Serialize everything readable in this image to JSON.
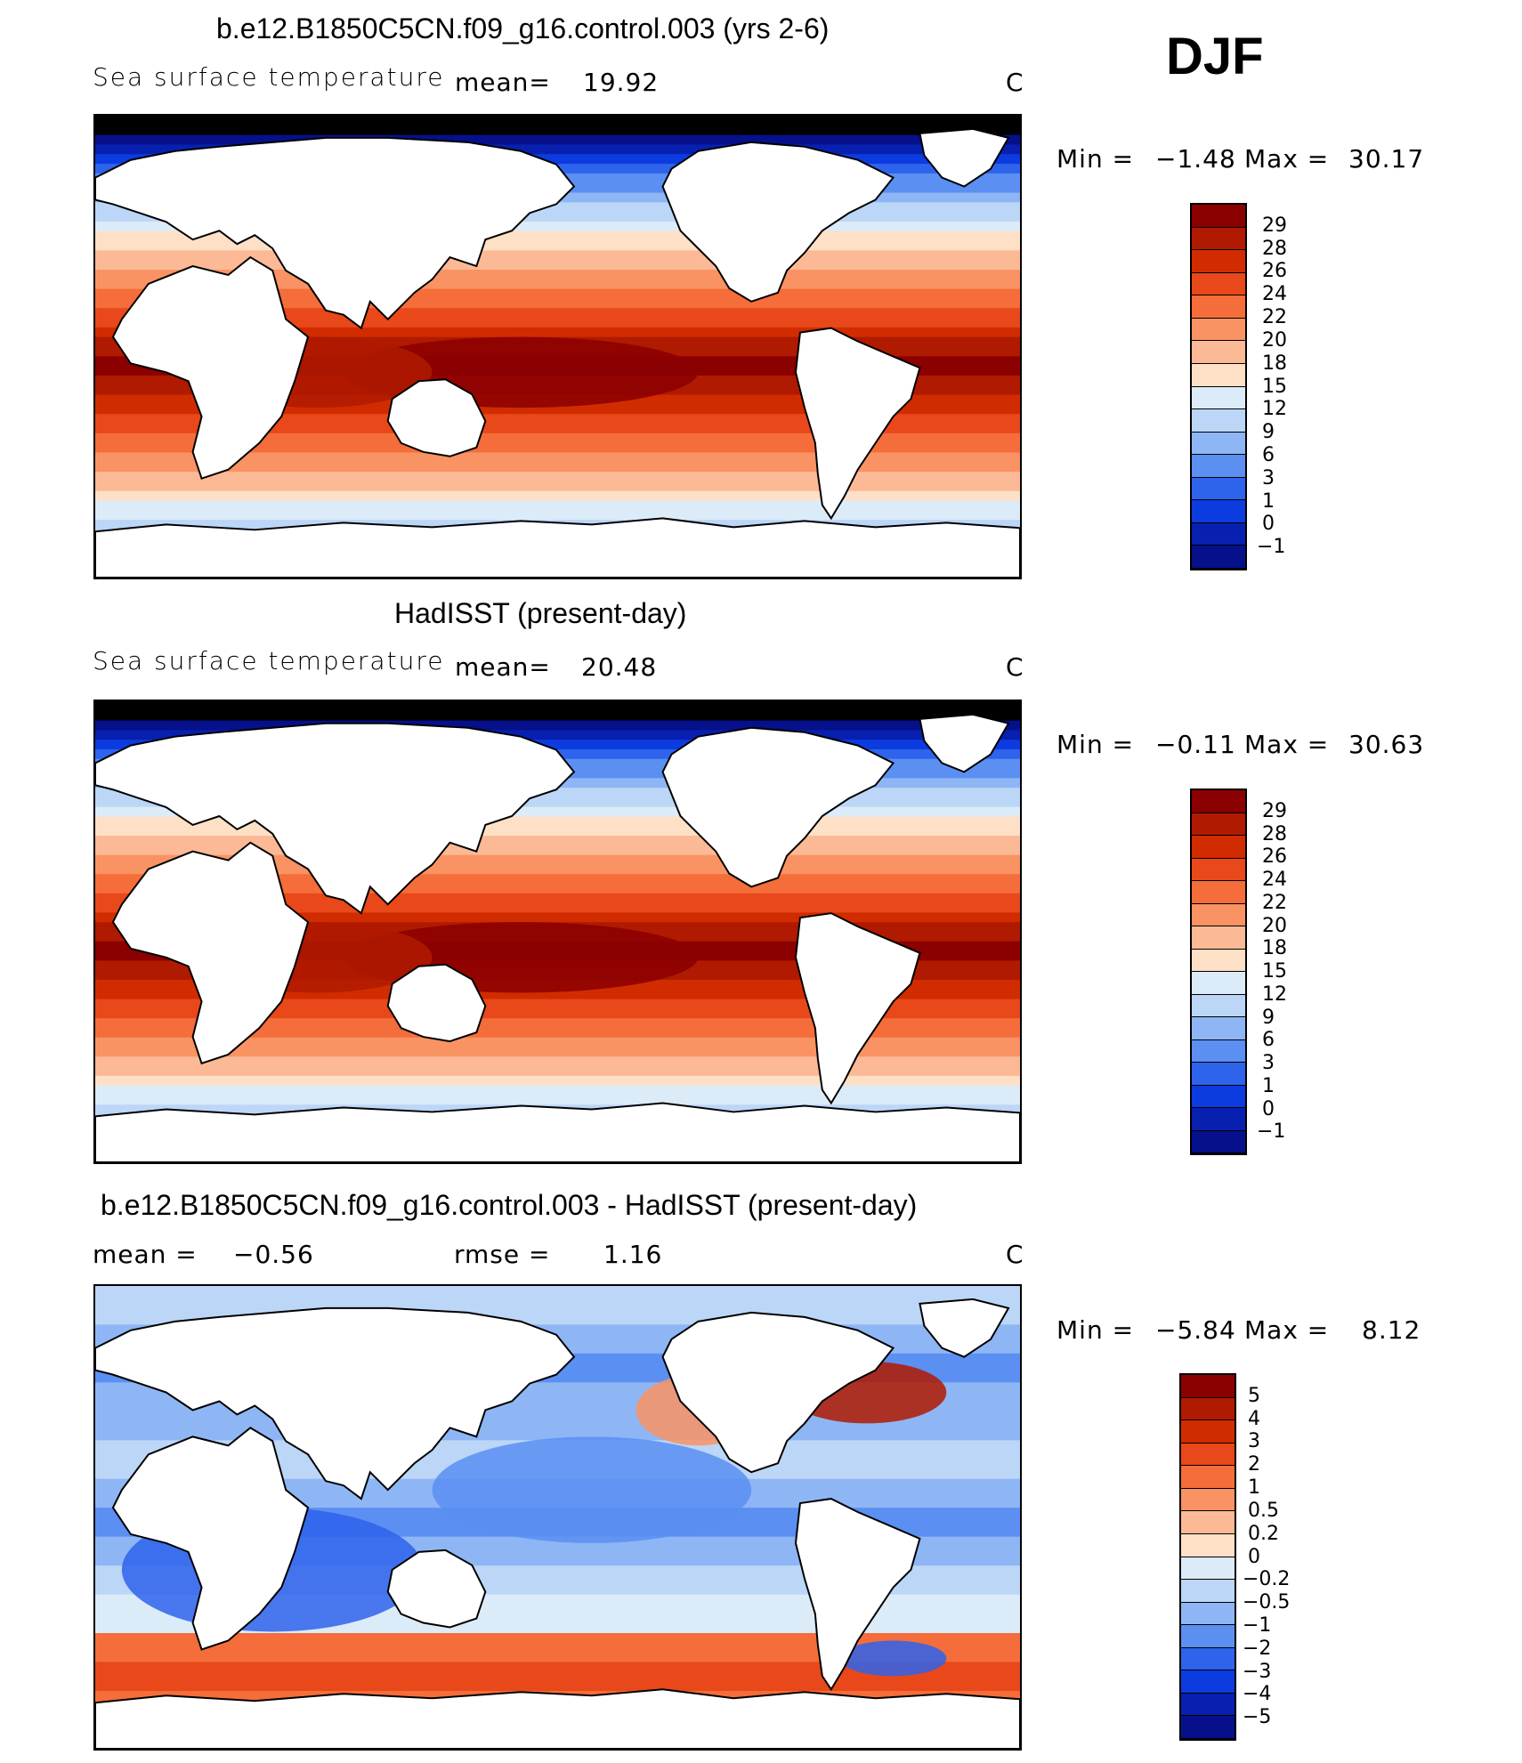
{
  "season": "DJF",
  "panels": [
    {
      "title": "b.e12.B1850C5CN.f09_g16.control.003 (yrs 2-6)",
      "left_label": "Sea surface temperature",
      "stat1_label": "mean=",
      "stat1_value": "19.92",
      "stat2_label": "",
      "stat2_value": "",
      "units": "C",
      "min_label": "Min =",
      "min_value": "−1.48",
      "max_label": "Max =",
      "max_value": "30.17",
      "colorbar": {
        "labels": [
          "29",
          "28",
          "26",
          "24",
          "22",
          "20",
          "18",
          "15",
          "12",
          "9",
          "6",
          "3",
          "1",
          "0",
          "−1"
        ],
        "colors": [
          "#8b0000",
          "#b01a00",
          "#d12c00",
          "#e8481a",
          "#f46d3a",
          "#f99363",
          "#fcb995",
          "#fde0c6",
          "#dcebf8",
          "#bcd6f7",
          "#8eb6f5",
          "#5b8ff2",
          "#2e63ec",
          "#0c3be0",
          "#0820b0",
          "#05108a"
        ]
      },
      "map_type": "sst_model"
    },
    {
      "title": "HadISST (present-day)",
      "left_label": "Sea surface temperature",
      "stat1_label": "mean=",
      "stat1_value": "20.48",
      "stat2_label": "",
      "stat2_value": "",
      "units": "C",
      "min_label": "Min =",
      "min_value": "−0.11",
      "max_label": "Max =",
      "max_value": "30.63",
      "colorbar": {
        "labels": [
          "29",
          "28",
          "26",
          "24",
          "22",
          "20",
          "18",
          "15",
          "12",
          "9",
          "6",
          "3",
          "1",
          "0",
          "−1"
        ],
        "colors": [
          "#8b0000",
          "#b01a00",
          "#d12c00",
          "#e8481a",
          "#f46d3a",
          "#f99363",
          "#fcb995",
          "#fde0c6",
          "#dcebf8",
          "#bcd6f7",
          "#8eb6f5",
          "#5b8ff2",
          "#2e63ec",
          "#0c3be0",
          "#0820b0",
          "#05108a"
        ]
      },
      "map_type": "sst_obs"
    },
    {
      "title": "b.e12.B1850C5CN.f09_g16.control.003 - HadISST (present-day)",
      "left_label": "",
      "stat1_label": "mean =",
      "stat1_value": "−0.56",
      "stat2_label": "rmse =",
      "stat2_value": "1.16",
      "units": "C",
      "min_label": "Min =",
      "min_value": "−5.84",
      "max_label": "Max =",
      "max_value": "8.12",
      "colorbar": {
        "labels": [
          "5",
          "4",
          "3",
          "2",
          "1",
          "0.5",
          "0.2",
          "0",
          "−0.2",
          "−0.5",
          "−1",
          "−2",
          "−3",
          "−4",
          "−5"
        ],
        "colors": [
          "#8b0000",
          "#b01a00",
          "#d12c00",
          "#e8481a",
          "#f46d3a",
          "#f99363",
          "#fcb995",
          "#fde0c6",
          "#dcebf8",
          "#bcd6f7",
          "#8eb6f5",
          "#5b8ff2",
          "#2e63ec",
          "#0c3be0",
          "#0820b0",
          "#05108a"
        ]
      },
      "map_type": "difference"
    }
  ]
}
